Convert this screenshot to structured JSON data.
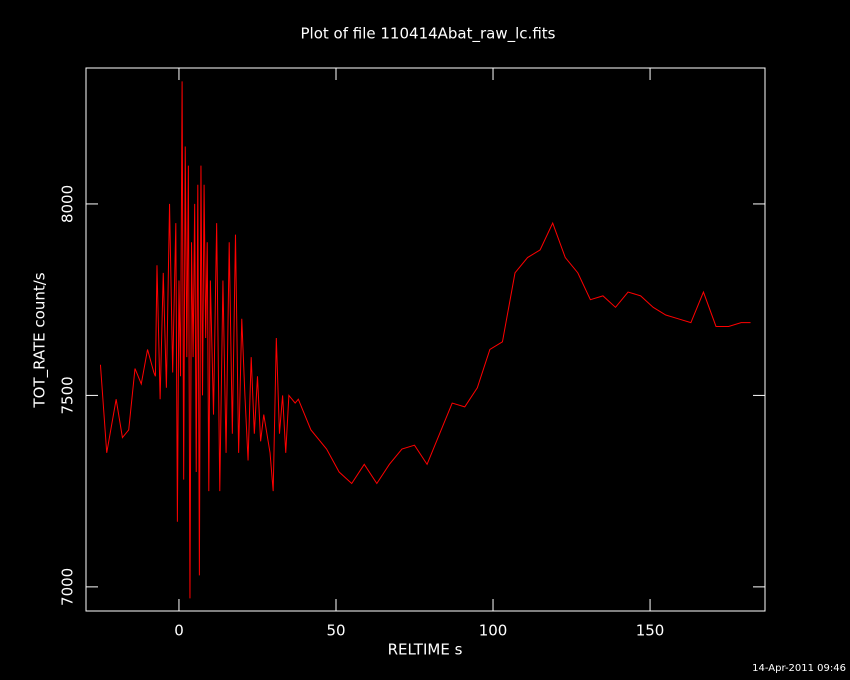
{
  "chart_data": {
    "type": "line",
    "title": "Plot of file 110414Abat_raw_lc.fits",
    "x_label": "RELTIME  s",
    "y_label": "TOT_RATE  count/s",
    "timestamp": "14-Apr-2011 09:46",
    "color": "#ff0000",
    "xlim": [
      -29.6,
      186.6
    ],
    "ylim": [
      6937,
      8355
    ],
    "xticks": [
      0,
      50,
      100,
      150
    ],
    "yticks": [
      7000,
      7500,
      8000
    ],
    "x": [
      -25,
      -23,
      -20,
      -18,
      -16,
      -14,
      -12,
      -10,
      -8,
      -7.5,
      -7,
      -6,
      -5,
      -4,
      -3,
      -2,
      -1,
      -0.5,
      0,
      0.5,
      1,
      1.5,
      2,
      2.5,
      3,
      3.5,
      4,
      4.5,
      5,
      5.5,
      6,
      6.5,
      7,
      7.5,
      8,
      8.5,
      9,
      9.5,
      10,
      11,
      12,
      13,
      14,
      15,
      16,
      17,
      18,
      19,
      20,
      21,
      22,
      23,
      24,
      25,
      26,
      27,
      28,
      29,
      30,
      31,
      32,
      33,
      34,
      35,
      37,
      38,
      42,
      47,
      51,
      55,
      59,
      63,
      67,
      71,
      75,
      79,
      83,
      87,
      91,
      95,
      99,
      103,
      107,
      111,
      115,
      119,
      123,
      127,
      131,
      135,
      139,
      143,
      147,
      151,
      155,
      159,
      163,
      167,
      171,
      175,
      179,
      182
    ],
    "values": [
      7580,
      7350,
      7490,
      7390,
      7410,
      7570,
      7530,
      7620,
      7560,
      7550,
      7840,
      7490,
      7820,
      7520,
      8000,
      7560,
      7950,
      7170,
      7800,
      7550,
      8320,
      7280,
      8150,
      7600,
      8100,
      6970,
      7900,
      7600,
      8000,
      7300,
      8050,
      7030,
      8100,
      7500,
      8050,
      7650,
      7900,
      7250,
      7800,
      7450,
      7950,
      7250,
      7800,
      7350,
      7900,
      7400,
      7920,
      7350,
      7700,
      7500,
      7330,
      7600,
      7400,
      7550,
      7380,
      7450,
      7400,
      7350,
      7250,
      7650,
      7400,
      7500,
      7350,
      7500,
      7480,
      7490,
      7410,
      7360,
      7300,
      7270,
      7320,
      7270,
      7320,
      7360,
      7370,
      7320,
      7400,
      7480,
      7470,
      7520,
      7620,
      7640,
      7820,
      7860,
      7880,
      7950,
      7860,
      7820,
      7750,
      7760,
      7730,
      7770,
      7760,
      7730,
      7710,
      7700,
      7690,
      7770,
      7680,
      7680,
      7690,
      7690
    ]
  }
}
